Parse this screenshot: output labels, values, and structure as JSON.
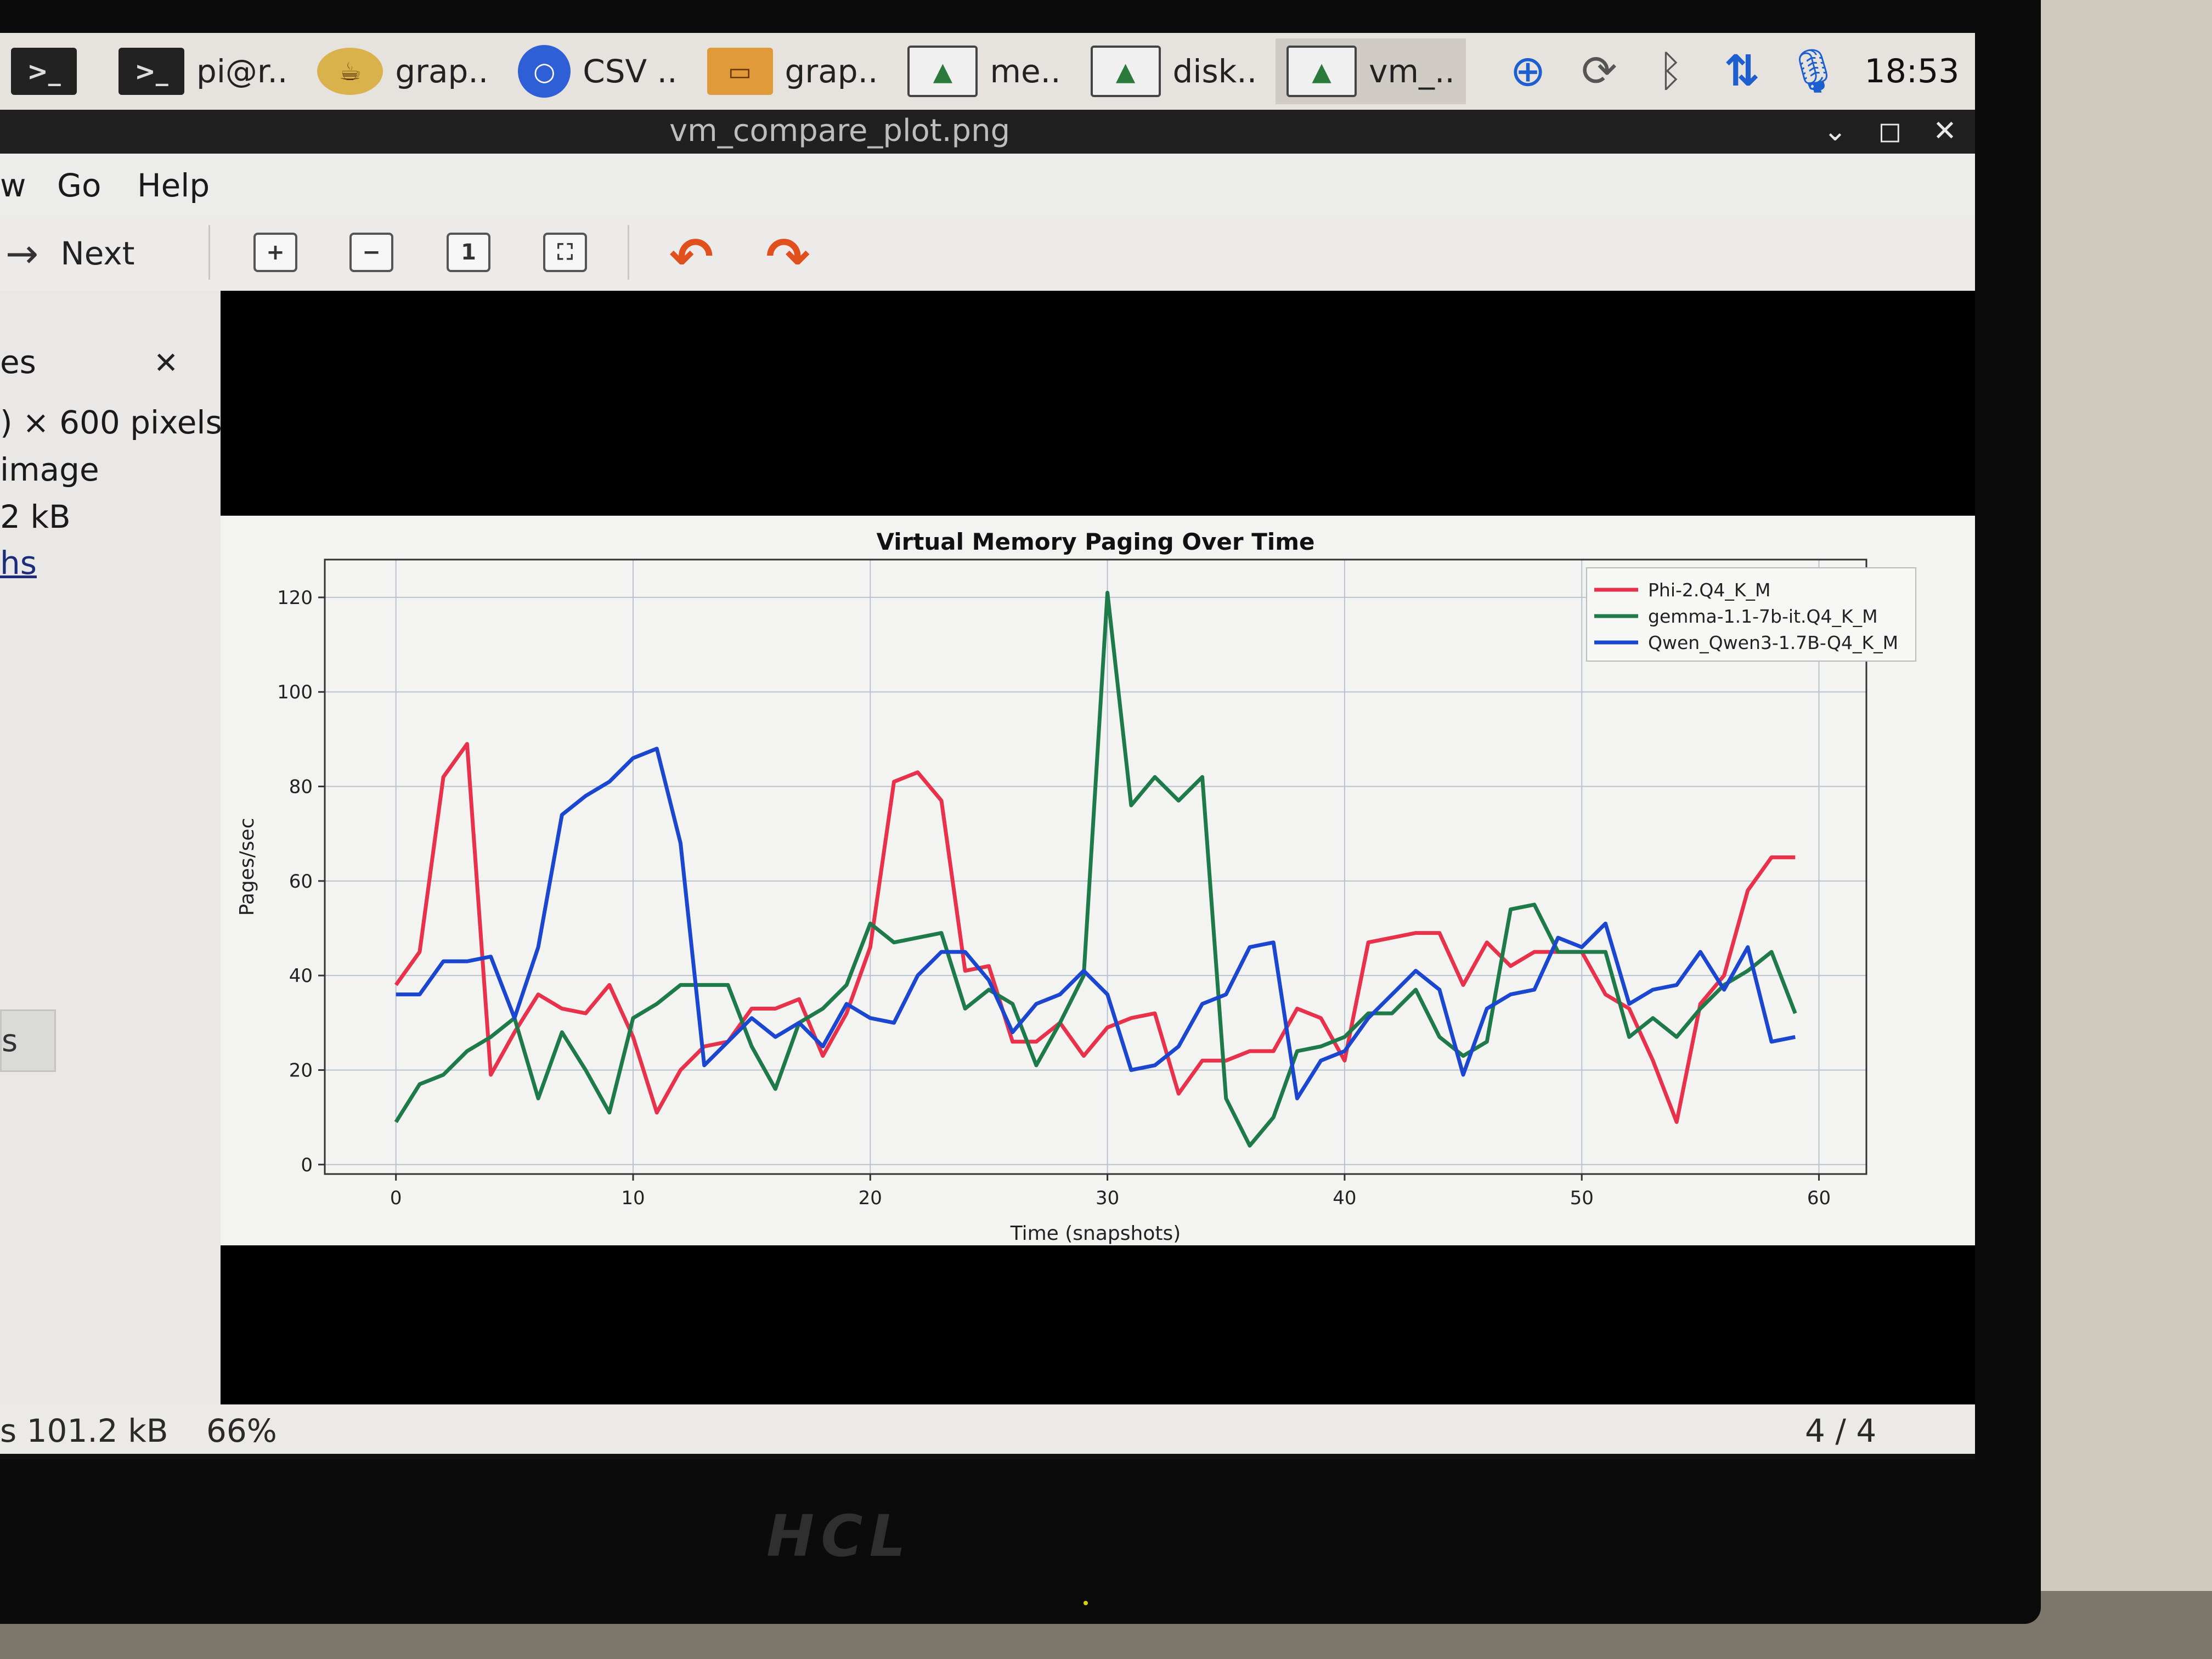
{
  "taskbar": {
    "tasks": [
      {
        "icon": "terminal-icon",
        "label": ""
      },
      {
        "icon": "terminal-icon",
        "label": "pi@r.."
      },
      {
        "icon": "teapot-icon",
        "label": "grap.."
      },
      {
        "icon": "circle-icon",
        "label": "CSV .."
      },
      {
        "icon": "folder-icon",
        "label": "grap.."
      },
      {
        "icon": "picture-icon",
        "label": "me.."
      },
      {
        "icon": "picture-icon",
        "label": "disk.."
      },
      {
        "icon": "picture-icon",
        "label": "vm_.."
      }
    ],
    "clock": "18:53"
  },
  "window": {
    "title": "vm_compare_plot.png"
  },
  "menu": {
    "view_partial": "w",
    "go": "Go",
    "help": "Help"
  },
  "toolbar": {
    "next_label": "Next"
  },
  "side": {
    "header_partial": "es",
    "size_partial": ") × 600 pixels",
    "type_partial": "image",
    "filesize_partial": "2 kB",
    "link_partial": "hs",
    "button_partial": "s"
  },
  "status": {
    "size_partial": "s 101.2 kB",
    "zoom": "66%",
    "page": "4 / 4"
  },
  "monitor": {
    "brand": "HCL"
  },
  "chart_data": {
    "type": "line",
    "title": "Virtual Memory Paging Over Time",
    "xlabel": "Time (snapshots)",
    "ylabel": "Pages/sec",
    "xlim": [
      -3,
      62
    ],
    "ylim": [
      -2,
      128
    ],
    "xticks": [
      0,
      10,
      20,
      30,
      40,
      50,
      60
    ],
    "yticks": [
      0,
      20,
      40,
      60,
      80,
      100,
      120
    ],
    "grid": true,
    "legend_position": "top-right",
    "x": [
      0,
      1,
      2,
      3,
      4,
      5,
      6,
      7,
      8,
      9,
      10,
      11,
      12,
      13,
      14,
      15,
      16,
      17,
      18,
      19,
      20,
      21,
      22,
      23,
      24,
      25,
      26,
      27,
      28,
      29,
      30,
      31,
      32,
      33,
      34,
      35,
      36,
      37,
      38,
      39,
      40,
      41,
      42,
      43,
      44,
      45,
      46,
      47,
      48,
      49,
      50,
      51,
      52,
      53,
      54,
      55,
      56,
      57,
      58,
      59
    ],
    "series": [
      {
        "name": "Phi-2.Q4_K_M",
        "color": "#e8324b",
        "values": [
          38,
          45,
          82,
          89,
          19,
          28,
          36,
          33,
          32,
          38,
          27,
          11,
          20,
          25,
          26,
          33,
          33,
          35,
          23,
          32,
          46,
          81,
          83,
          77,
          41,
          42,
          26,
          26,
          30,
          23,
          29,
          31,
          32,
          15,
          22,
          22,
          24,
          24,
          33,
          31,
          22,
          47,
          48,
          49,
          49,
          38,
          47,
          42,
          45,
          45,
          45,
          36,
          33,
          22,
          9,
          34,
          40,
          58,
          65,
          65
        ]
      },
      {
        "name": "gemma-1.1-7b-it.Q4_K_M",
        "color": "#1f7a4a",
        "values": [
          9,
          17,
          19,
          24,
          27,
          31,
          14,
          28,
          20,
          11,
          31,
          34,
          38,
          38,
          38,
          25,
          16,
          30,
          33,
          38,
          51,
          47,
          48,
          49,
          33,
          37,
          34,
          21,
          30,
          40,
          121,
          76,
          82,
          77,
          82,
          14,
          4,
          10,
          24,
          25,
          27,
          32,
          32,
          37,
          27,
          23,
          26,
          54,
          55,
          45,
          45,
          45,
          27,
          31,
          27,
          33,
          38,
          41,
          45,
          32
        ]
      },
      {
        "name": "Qwen_Qwen3-1.7B-Q4_K_M",
        "color": "#1b46d0",
        "values": [
          36,
          36,
          43,
          43,
          44,
          31,
          46,
          74,
          78,
          81,
          86,
          88,
          68,
          21,
          26,
          31,
          27,
          30,
          25,
          34,
          31,
          30,
          40,
          45,
          45,
          39,
          28,
          34,
          36,
          41,
          36,
          20,
          21,
          25,
          34,
          36,
          46,
          47,
          14,
          22,
          24,
          31,
          36,
          41,
          37,
          19,
          33,
          36,
          37,
          48,
          46,
          51,
          34,
          37,
          38,
          45,
          37,
          46,
          26,
          27
        ]
      }
    ]
  }
}
